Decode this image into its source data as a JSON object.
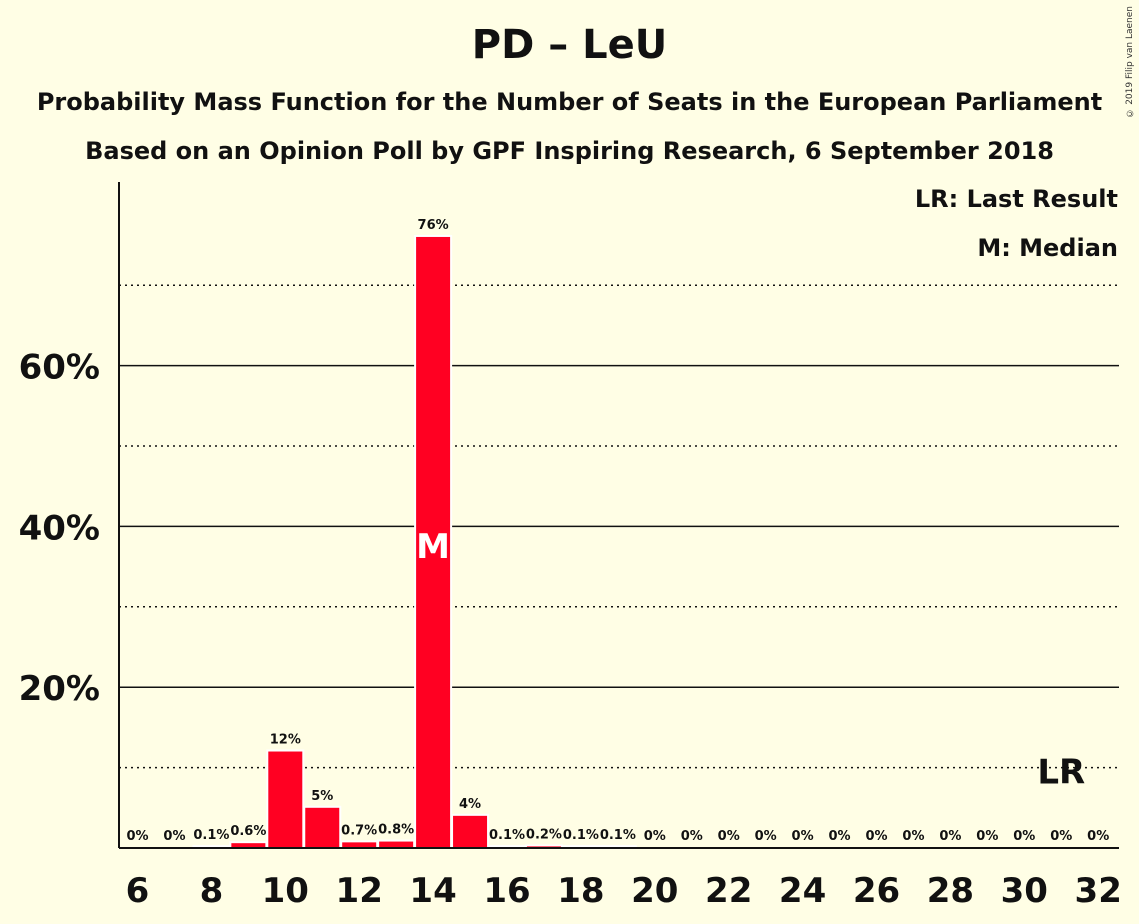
{
  "title": "PD – LeU",
  "subtitle_line1": "Probability Mass Function for the Number of Seats in the European Parliament",
  "subtitle_line2": "Based on an Opinion Poll by GPF Inspiring Research, 6 September 2018",
  "copyright": "© 2019 Filip van Laenen",
  "legend": {
    "last_result": "LR: Last Result",
    "median": "M: Median"
  },
  "colors": {
    "bar": "#FF0022",
    "background": "#FFFEE5",
    "text": "#111111"
  },
  "chart_data": {
    "type": "bar",
    "xlabel": "",
    "ylabel": "",
    "x": [
      6,
      7,
      8,
      9,
      10,
      11,
      12,
      13,
      14,
      15,
      16,
      17,
      18,
      19,
      20,
      21,
      22,
      23,
      24,
      25,
      26,
      27,
      28,
      29,
      30,
      31,
      32
    ],
    "values": [
      0,
      0,
      0.1,
      0.6,
      12,
      5,
      0.7,
      0.8,
      76,
      4,
      0.1,
      0.2,
      0.1,
      0.1,
      0,
      0,
      0,
      0,
      0,
      0,
      0,
      0,
      0,
      0,
      0,
      0,
      0
    ],
    "value_labels": [
      "0%",
      "0%",
      "0.1%",
      "0.6%",
      "12%",
      "5%",
      "0.7%",
      "0.8%",
      "76%",
      "4%",
      "0.1%",
      "0.2%",
      "0.1%",
      "0.1%",
      "0%",
      "0%",
      "0%",
      "0%",
      "0%",
      "0%",
      "0%",
      "0%",
      "0%",
      "0%",
      "0%",
      "0%",
      "0%"
    ],
    "x_tick_labels": [
      6,
      8,
      10,
      12,
      14,
      16,
      18,
      20,
      22,
      24,
      26,
      28,
      30,
      32
    ],
    "y_tick_values": [
      20,
      40,
      60
    ],
    "y_tick_labels": [
      "20%",
      "40%",
      "60%"
    ],
    "y_solid_lines": [
      20,
      40,
      60
    ],
    "y_dotted_lines": [
      10,
      30,
      50,
      70
    ],
    "ylim": [
      0,
      82
    ],
    "median_seat": 14,
    "median_label": "M",
    "last_result_seat": 31,
    "last_result_label": "LR"
  }
}
